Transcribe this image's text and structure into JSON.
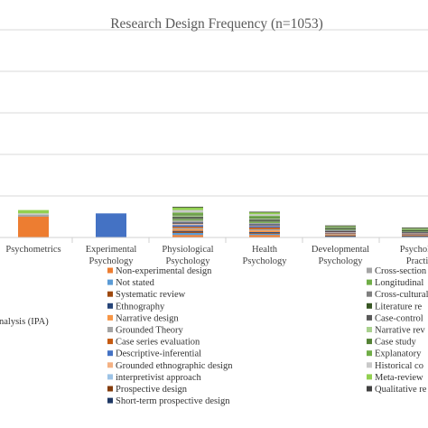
{
  "chart_data": {
    "type": "bar",
    "stacked": true,
    "title": "Research Design Frequency (n=1053)",
    "xlabel": "",
    "ylabel": "",
    "ylim": [
      0,
      500
    ],
    "grid": true,
    "legend_position": "bottom",
    "categories": [
      {
        "label": "Psychometrics",
        "lines": [
          "Psychometrics"
        ]
      },
      {
        "label": "Experimental Psychology",
        "lines": [
          "Experimental",
          "Psychology"
        ]
      },
      {
        "label": "Physiological Psychology",
        "lines": [
          "Physiological",
          "Psychology"
        ]
      },
      {
        "label": "Health Psychology",
        "lines": [
          "Health",
          "Psychology"
        ]
      },
      {
        "label": "Developmental Psychology",
        "lines": [
          "Developmental",
          "Psychology"
        ]
      },
      {
        "label": "Psychology Practice",
        "lines": [
          "Psycholo",
          "Practi"
        ]
      }
    ],
    "series": [
      {
        "name": "Non-experimental design",
        "color": "#ED7D31",
        "values": [
          50,
          0,
          6,
          6,
          2,
          2
        ]
      },
      {
        "name": "Not stated",
        "color": "#5B9BD5",
        "values": [
          0,
          0,
          5,
          3,
          1,
          1
        ]
      },
      {
        "name": "Systematic review",
        "color": "#9E480E",
        "values": [
          0,
          0,
          3,
          2,
          1,
          1
        ]
      },
      {
        "name": "Ethnography",
        "color": "#264478",
        "values": [
          0,
          0,
          2,
          2,
          1,
          1
        ]
      },
      {
        "name": "Narrative design",
        "color": "#F79646",
        "values": [
          0,
          0,
          4,
          4,
          2,
          1
        ]
      },
      {
        "name": "Grounded Theory",
        "color": "#A5A5A5",
        "values": [
          0,
          0,
          3,
          3,
          2,
          1
        ]
      },
      {
        "name": "Case series evaluation",
        "color": "#C55A11",
        "values": [
          0,
          0,
          3,
          4,
          1,
          1
        ]
      },
      {
        "name": "Descriptive-inferential",
        "color": "#4472C4",
        "values": [
          0,
          58,
          4,
          4,
          2,
          1
        ]
      },
      {
        "name": "Grounded ethnographic design",
        "color": "#F4B183",
        "values": [
          0,
          0,
          2,
          1,
          1,
          1
        ]
      },
      {
        "name": "interpretivist approach",
        "color": "#9DC3E6",
        "values": [
          0,
          0,
          2,
          1,
          1,
          1
        ]
      },
      {
        "name": "Prospective design",
        "color": "#843C0C",
        "values": [
          0,
          0,
          1,
          1,
          1,
          1
        ]
      },
      {
        "name": "Short-term prospective design",
        "color": "#1F3864",
        "values": [
          0,
          0,
          1,
          1,
          1,
          1
        ]
      },
      {
        "name": "Cross-section",
        "color": "#A5A5A5",
        "values": [
          5,
          0,
          5,
          3,
          2,
          1
        ]
      },
      {
        "name": "Longitudinal",
        "color": "#70AD47",
        "values": [
          0,
          0,
          3,
          3,
          2,
          1
        ]
      },
      {
        "name": "Cross-cultural",
        "color": "#7F7F7F",
        "values": [
          0,
          0,
          2,
          2,
          1,
          1
        ]
      },
      {
        "name": "Literature re",
        "color": "#375623",
        "values": [
          0,
          0,
          2,
          2,
          1,
          1
        ]
      },
      {
        "name": "Case-control",
        "color": "#595959",
        "values": [
          0,
          0,
          2,
          2,
          1,
          1
        ]
      },
      {
        "name": "Narrative rev",
        "color": "#A9D18E",
        "values": [
          0,
          0,
          3,
          2,
          1,
          1
        ]
      },
      {
        "name": "Case study",
        "color": "#548235",
        "values": [
          0,
          0,
          3,
          3,
          1,
          1
        ]
      },
      {
        "name": "Explanatory",
        "color": "#70AD47",
        "values": [
          0,
          0,
          4,
          3,
          1,
          1
        ]
      },
      {
        "name": "Historical co",
        "color": "#C9C9C9",
        "values": [
          3,
          0,
          6,
          4,
          1,
          1
        ]
      },
      {
        "name": "Meta-review",
        "color": "#92D050",
        "values": [
          8,
          0,
          7,
          5,
          1,
          1
        ]
      },
      {
        "name": "Qualitative re",
        "color": "#404040",
        "values": [
          0,
          0,
          1,
          1,
          1,
          1
        ]
      }
    ],
    "partial_labels": {
      "left_legend_fragment": "nalysis (IPA)"
    }
  }
}
